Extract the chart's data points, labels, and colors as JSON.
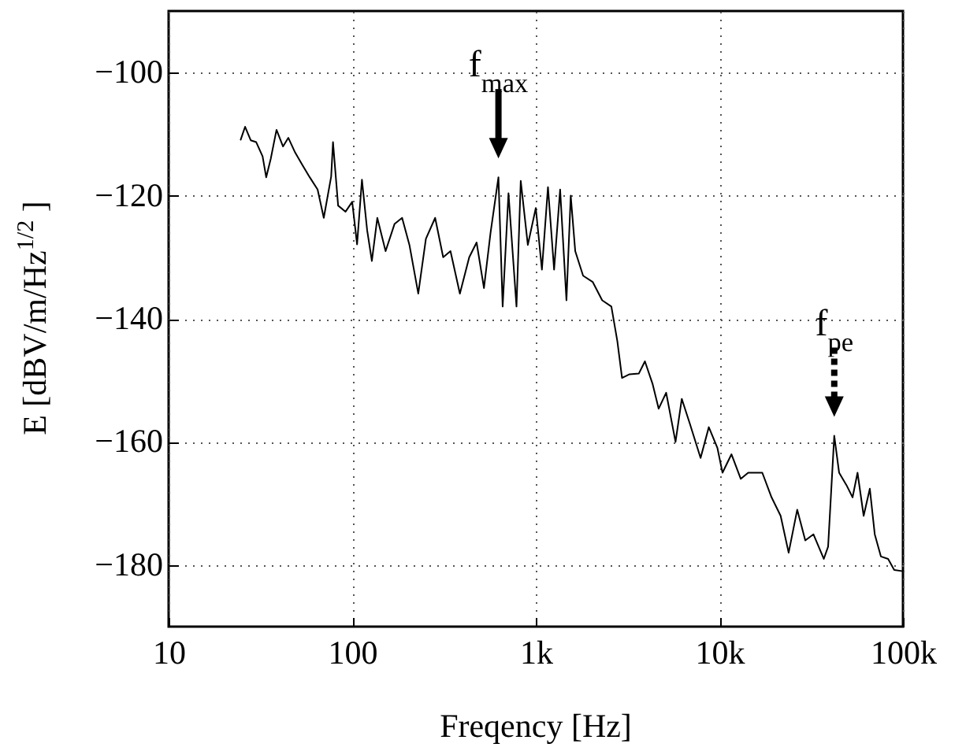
{
  "chart_data": {
    "type": "line",
    "xlabel": "Freqency [Hz]",
    "ylabel": "E [dBV/m/Hz$^{1/2}$ ]",
    "log": "x",
    "grid": true,
    "line_style": "solid",
    "marker": "none",
    "xlim": [
      10,
      100000
    ],
    "xticks": [
      10,
      100,
      {
        "value": 1000,
        "label": "1k"
      },
      {
        "value": 10000,
        "label": "10k"
      },
      {
        "value": 100000,
        "label": "100k"
      }
    ],
    "ylim": [
      -190,
      -90
    ],
    "yticks": [
      -100,
      -120,
      -140,
      -160,
      -180
    ],
    "x": [
      24.7,
      26.1,
      28,
      30,
      32.5,
      34,
      36,
      38.7,
      42,
      44.9,
      48.9,
      53.5,
      58.7,
      64.8,
      70,
      76.8,
      78.6,
      83.8,
      92,
      100,
      106.3,
      113,
      120.6,
      128,
      137,
      152,
      170,
      187,
      205,
      229,
      252,
      283,
      313,
      343,
      386,
      434,
      476,
      522,
      567,
      626,
      660,
      710,
      785,
      828,
      905,
      1000,
      1080,
      1165,
      1258,
      1357,
      1469,
      1550,
      1640,
      1810,
      2040,
      2300,
      2580,
      2780,
      2950,
      3240,
      3640,
      3930,
      4330,
      4670,
      5130,
      5770,
      6240,
      6900,
      7900,
      8760,
      9760,
      10400,
      11640,
      13080,
      14350,
      17130,
      19240,
      21560,
      23840,
      26550,
      29370,
      32520,
      37050,
      39110,
      42240,
      44900,
      49200,
      53150,
      56560,
      61080,
      66000,
      70200,
      75800,
      83000,
      89600,
      100000
    ],
    "series": [
      {
        "color": "#000000",
        "values": [
          -110.9,
          -108.8,
          -111,
          -111.3,
          -113.6,
          -117,
          -114,
          -109.3,
          -112,
          -110.6,
          -113,
          -115,
          -117,
          -119,
          -123.6,
          -116.9,
          -111.3,
          -121.6,
          -122.6,
          -121,
          -127.9,
          -117.4,
          -125.6,
          -130.6,
          -123.6,
          -129,
          -124.6,
          -123.6,
          -128,
          -135.9,
          -127,
          -123.6,
          -130,
          -129,
          -135.9,
          -130,
          -127.6,
          -135,
          -126,
          -117,
          -138,
          -119.6,
          -138,
          -117.6,
          -128,
          -122,
          -132,
          -118.6,
          -132,
          -119,
          -137,
          -120,
          -129,
          -133,
          -134,
          -137,
          -138,
          -143.6,
          -149.6,
          -149,
          -148.9,
          -146.9,
          -150.6,
          -154.6,
          -152,
          -160,
          -153,
          -157,
          -162.6,
          -157.6,
          -161,
          -165,
          -162,
          -166,
          -165,
          -165,
          -169,
          -172,
          -178,
          -171,
          -176,
          -175,
          -179,
          -177,
          -159,
          -165,
          -167,
          -169,
          -165,
          -172,
          -167.6,
          -175,
          -178.6,
          -179,
          -180.8,
          -181
        ]
      }
    ],
    "annotations": [
      {
        "text": "f$_{max}$",
        "x": 626,
        "y": -117
      },
      {
        "text": "f$_{pe}$",
        "x": 42240,
        "y": -159
      }
    ]
  }
}
